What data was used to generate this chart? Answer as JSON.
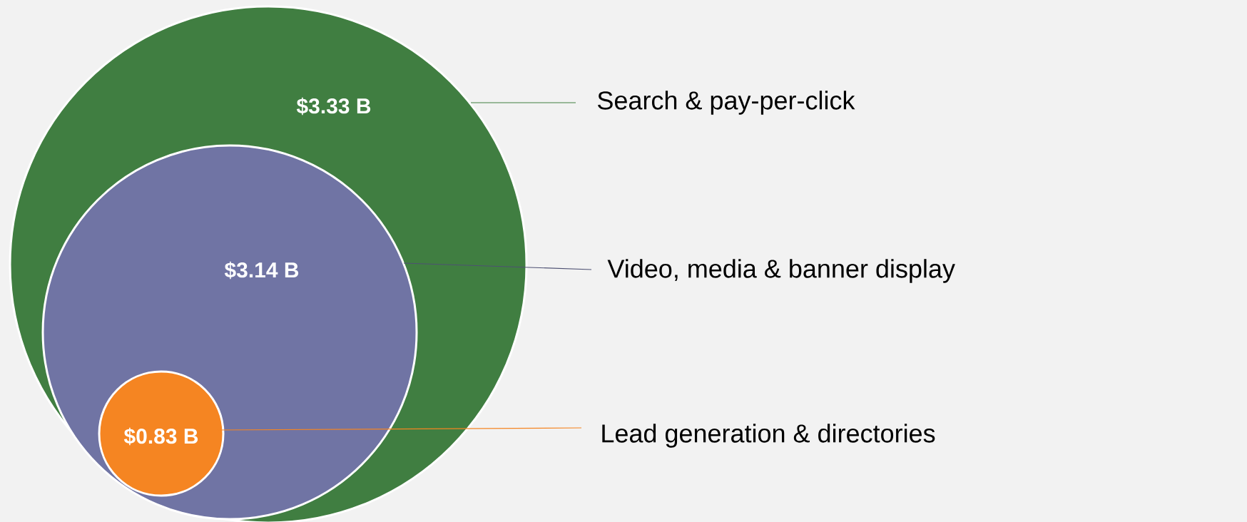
{
  "chart_data": {
    "type": "other",
    "categories": [
      "Search & pay-per-click",
      "Video, media & banner display",
      "Lead generation & directories"
    ],
    "values": [
      3.33,
      3.14,
      0.83
    ],
    "value_labels": [
      "$3.33 B",
      "$3.14 B",
      "$0.83 B"
    ],
    "colors": [
      "#407e41",
      "#7074a4",
      "#f58522"
    ]
  }
}
